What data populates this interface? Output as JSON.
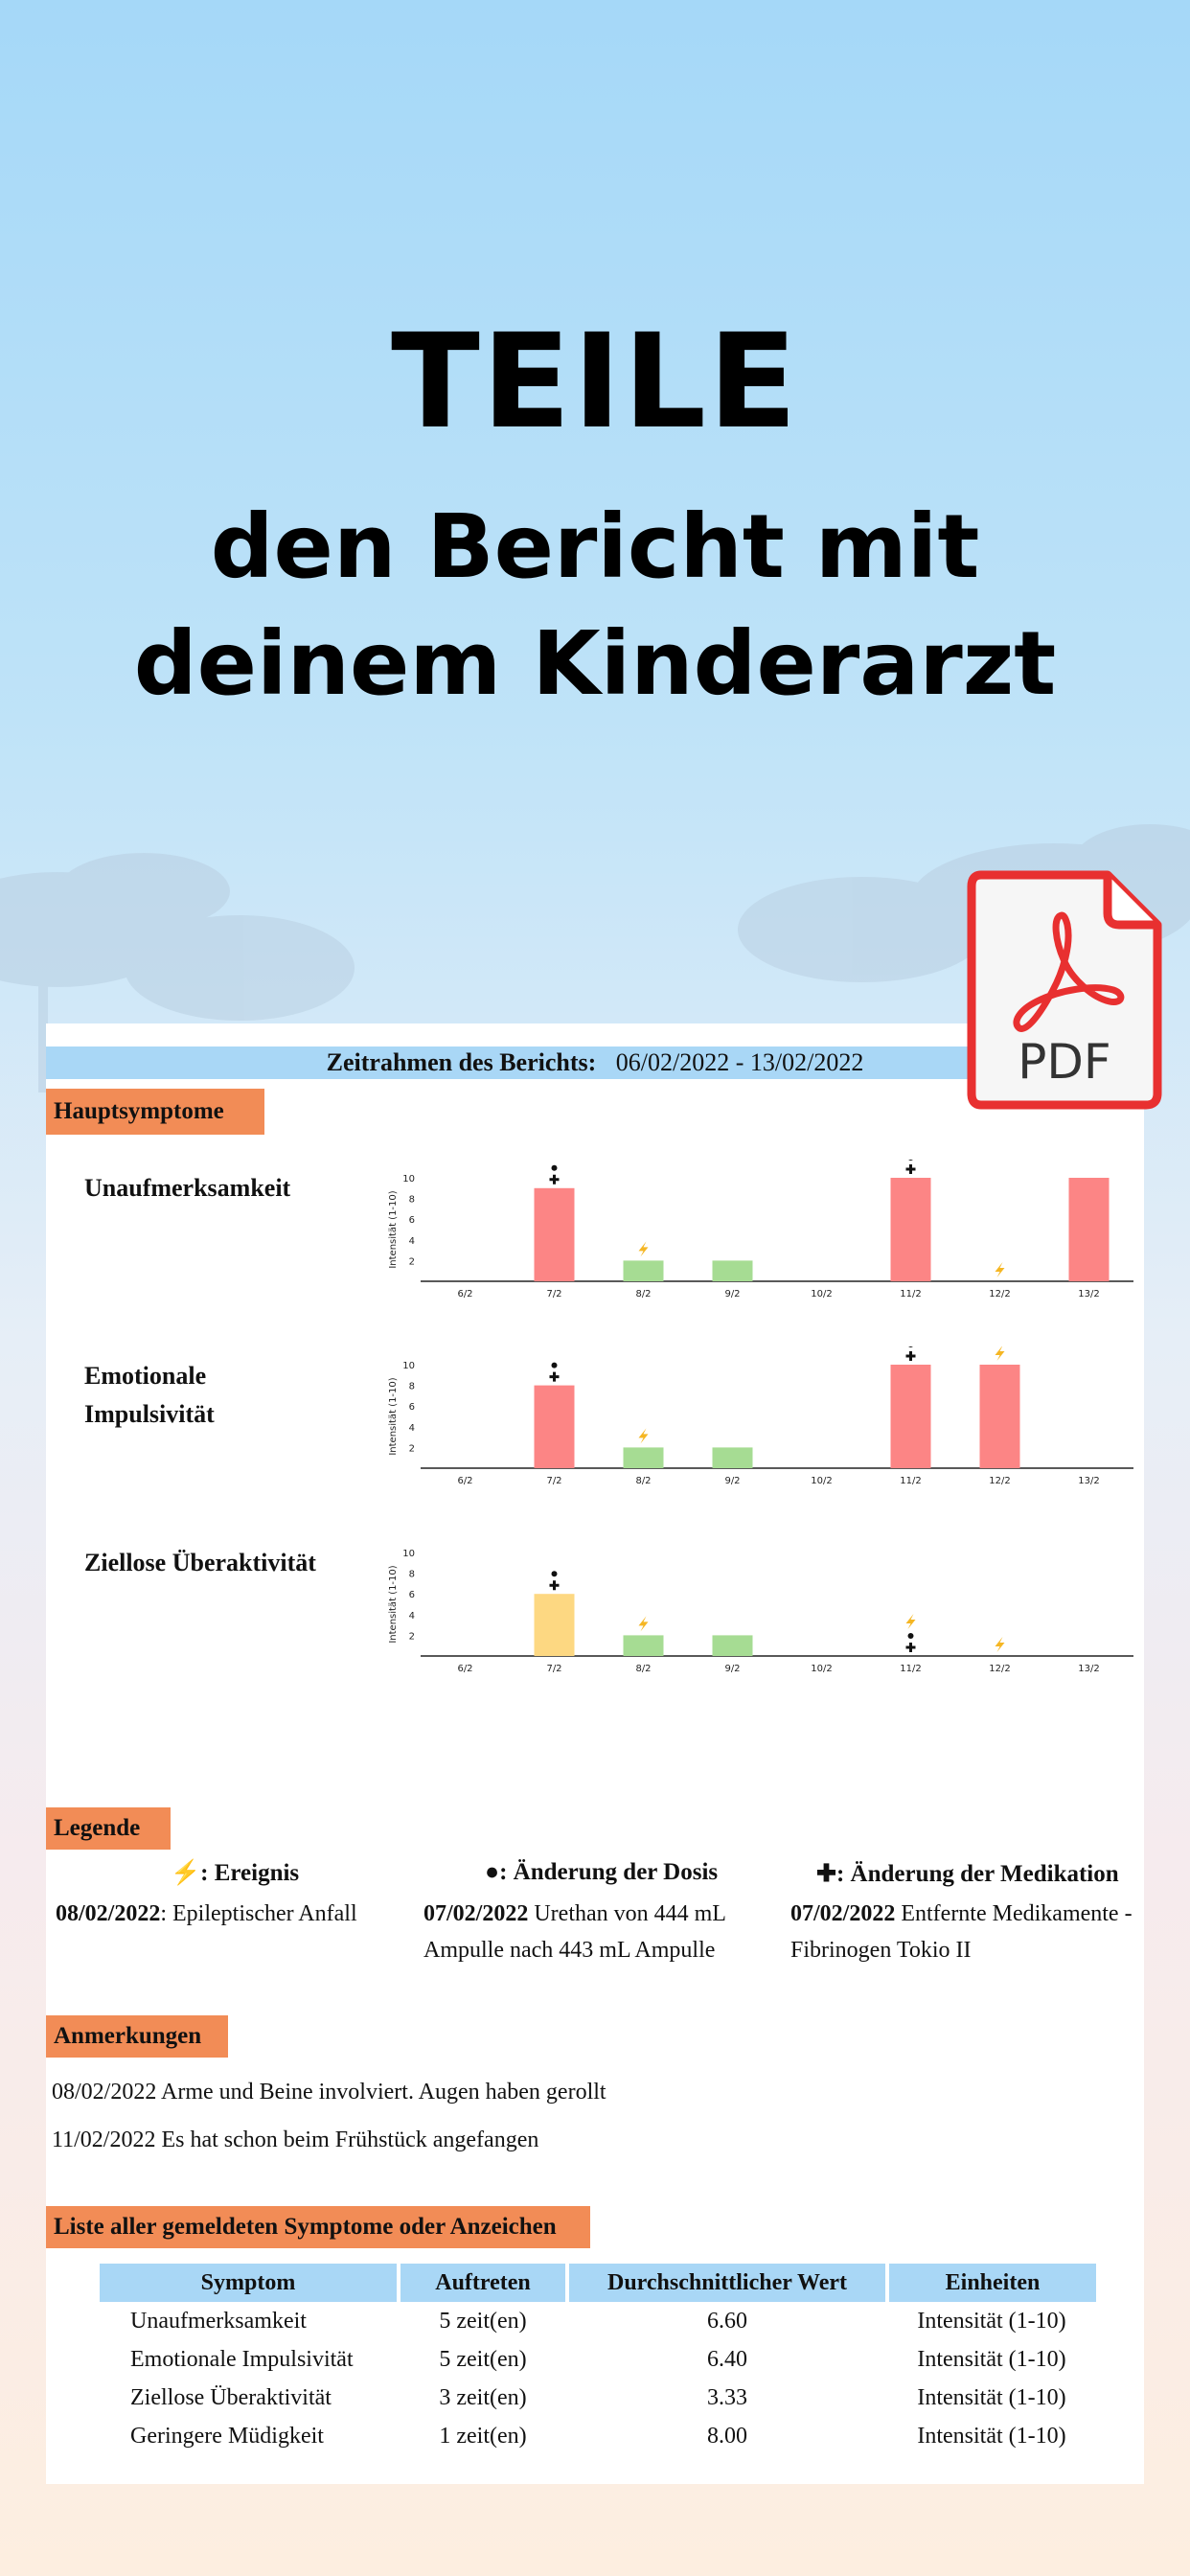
{
  "headline": {
    "line1": "TEILE",
    "line2": "den Bericht mit",
    "line3": "deinem Kinderarzt"
  },
  "badge": {
    "label": "PDF",
    "color": "#e83030"
  },
  "report": {
    "period_label": "Zeitrahmen des Berichts:",
    "period_value": "06/02/2022 - 13/02/2022",
    "main_section": "Hauptsymptome",
    "symptoms": [
      {
        "name_line1": "Unaufmerksamkeit",
        "name_line2": ""
      },
      {
        "name_line1": "Emotionale",
        "name_line2": "Impulsivität"
      },
      {
        "name_line1": "Ziellose Überaktivität",
        "name_line2": ""
      }
    ],
    "legend_section": "Legende",
    "legend": [
      {
        "icon": "lightning-icon",
        "title": ": Ereignis",
        "date": "08/02/2022",
        "text": ": Epileptischer Anfall"
      },
      {
        "icon": "dot-icon",
        "title": "●: Änderung der Dosis",
        "date": "07/02/2022",
        "text": " Urethan von 444 mL Ampulle nach 443 mL Ampulle"
      },
      {
        "icon": "cross-icon",
        "title": "✚: Änderung der Medikation",
        "date": "07/02/2022",
        "text": " Entfernte Medikamente - Fibrinogen Tokio II"
      }
    ],
    "notes_section": "Anmerkungen",
    "notes": [
      "08/02/2022 Arme und Beine involviert. Augen haben gerollt",
      "11/02/2022 Es hat schon beim Frühstück angefangen"
    ],
    "list_section": "Liste aller gemeldeten Symptome oder Anzeichen",
    "table": {
      "headers": [
        "Symptom",
        "Auftreten",
        "Durchschnittlicher Wert",
        "Einheiten"
      ],
      "rows": [
        [
          "Unaufmerksamkeit",
          "5 zeit(en)",
          "6.60",
          "Intensität (1-10)"
        ],
        [
          "Emotionale Impulsivität",
          "5 zeit(en)",
          "6.40",
          "Intensität (1-10)"
        ],
        [
          "Ziellose Überaktivität",
          "3 zeit(en)",
          "3.33",
          "Intensität (1-10)"
        ],
        [
          "Geringere Müdigkeit",
          "1 zeit(en)",
          "8.00",
          "Intensität (1-10)"
        ]
      ]
    }
  },
  "chart_data": [
    {
      "type": "bar",
      "categories": [
        "6/2",
        "7/2",
        "8/2",
        "9/2",
        "10/2",
        "11/2",
        "12/2",
        "13/2"
      ],
      "values": [
        0,
        9,
        2,
        2,
        0,
        10,
        0,
        10
      ],
      "colors": [
        "",
        "#fc8585",
        "#a6dc93",
        "#a6dc93",
        "",
        "#fc8585",
        "",
        "#fc8585"
      ],
      "ylabel": "Intensität (1-10)",
      "ylim": [
        0,
        10
      ],
      "yticks": [
        2,
        4,
        6,
        8,
        10
      ],
      "markers": {
        "7/2": [
          "dot",
          "cross"
        ],
        "8/2": [
          "bolt"
        ],
        "11/2": [
          "dot",
          "cross"
        ],
        "12/2": [
          "bolt"
        ]
      }
    },
    {
      "type": "bar",
      "categories": [
        "6/2",
        "7/2",
        "8/2",
        "9/2",
        "10/2",
        "11/2",
        "12/2",
        "13/2"
      ],
      "values": [
        0,
        8,
        2,
        2,
        0,
        10,
        10,
        0
      ],
      "colors": [
        "",
        "#fc8585",
        "#a6dc93",
        "#a6dc93",
        "",
        "#fc8585",
        "#fc8585",
        ""
      ],
      "ylabel": "Intensität (1-10)",
      "ylim": [
        0,
        10
      ],
      "yticks": [
        2,
        4,
        6,
        8,
        10
      ],
      "markers": {
        "7/2": [
          "dot",
          "cross"
        ],
        "8/2": [
          "bolt"
        ],
        "11/2": [
          "dot",
          "cross"
        ],
        "12/2": [
          "bolt"
        ]
      }
    },
    {
      "type": "bar",
      "categories": [
        "6/2",
        "7/2",
        "8/2",
        "9/2",
        "10/2",
        "11/2",
        "12/2",
        "13/2"
      ],
      "values": [
        0,
        6,
        2,
        2,
        0,
        0,
        0,
        0
      ],
      "colors": [
        "",
        "#fdd882",
        "#a6dc93",
        "#a6dc93",
        "",
        "",
        "",
        ""
      ],
      "ylabel": "Intensität (1-10)",
      "ylim": [
        0,
        10
      ],
      "yticks": [
        2,
        4,
        6,
        8,
        10
      ],
      "markers": {
        "7/2": [
          "dot",
          "cross"
        ],
        "8/2": [
          "bolt"
        ],
        "11/2": [
          "bolt",
          "dot",
          "cross"
        ],
        "12/2": [
          "bolt"
        ]
      }
    }
  ]
}
